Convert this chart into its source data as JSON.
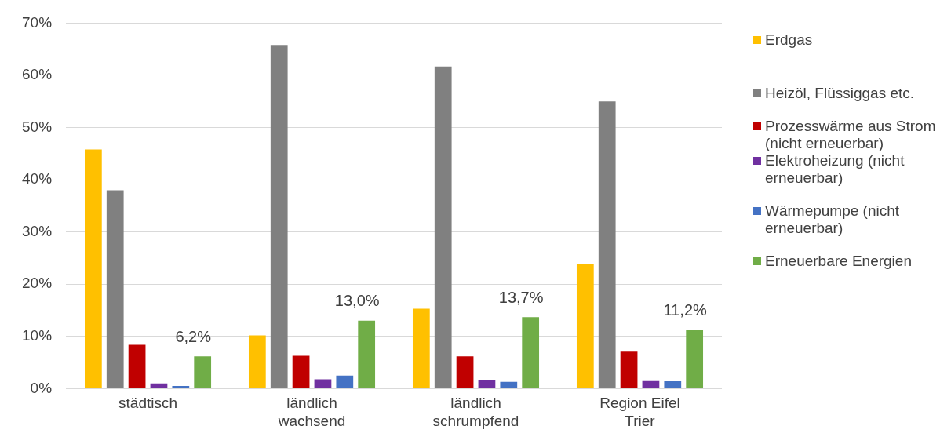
{
  "chart_data": {
    "type": "bar",
    "categories": [
      "städtisch",
      "ländlich\nwachsend",
      "ländlich\nschrumpfend",
      "Region Eifel\nTrier"
    ],
    "series": [
      {
        "name": "Erdgas",
        "color": "#ffc000",
        "values": [
          45.8,
          10.2,
          15.3,
          23.8
        ]
      },
      {
        "name": "Heizöl, Flüssiggas etc.",
        "color": "#808080",
        "values": [
          38.0,
          65.8,
          61.7,
          55.0
        ]
      },
      {
        "name": "Prozesswärme aus Strom (nicht erneuerbar)",
        "color": "#c00000",
        "values": [
          8.4,
          6.3,
          6.2,
          7.1
        ]
      },
      {
        "name": "Elektroheizung (nicht erneuerbar)",
        "color": "#7030a0",
        "values": [
          1.0,
          1.8,
          1.7,
          1.6
        ]
      },
      {
        "name": "Wärmepumpe (nicht erneuerbar)",
        "color": "#4472c4",
        "values": [
          0.5,
          2.5,
          1.3,
          1.4
        ]
      },
      {
        "name": "Erneuerbare Energien",
        "color": "#70ad47",
        "values": [
          6.2,
          13.0,
          13.7,
          11.2
        ],
        "value_labels": [
          "6,2%",
          "13,0%",
          "13,7%",
          "11,2%"
        ]
      }
    ],
    "ylim": [
      0,
      70
    ],
    "yticks": [
      {
        "value": 0,
        "label": "0%"
      },
      {
        "value": 10,
        "label": "10%"
      },
      {
        "value": 20,
        "label": "20%"
      },
      {
        "value": 30,
        "label": "30%"
      },
      {
        "value": 40,
        "label": "40%"
      },
      {
        "value": 50,
        "label": "50%"
      },
      {
        "value": 60,
        "label": "60%"
      },
      {
        "value": 70,
        "label": "70%"
      }
    ],
    "grid": "y",
    "legend": "right"
  }
}
